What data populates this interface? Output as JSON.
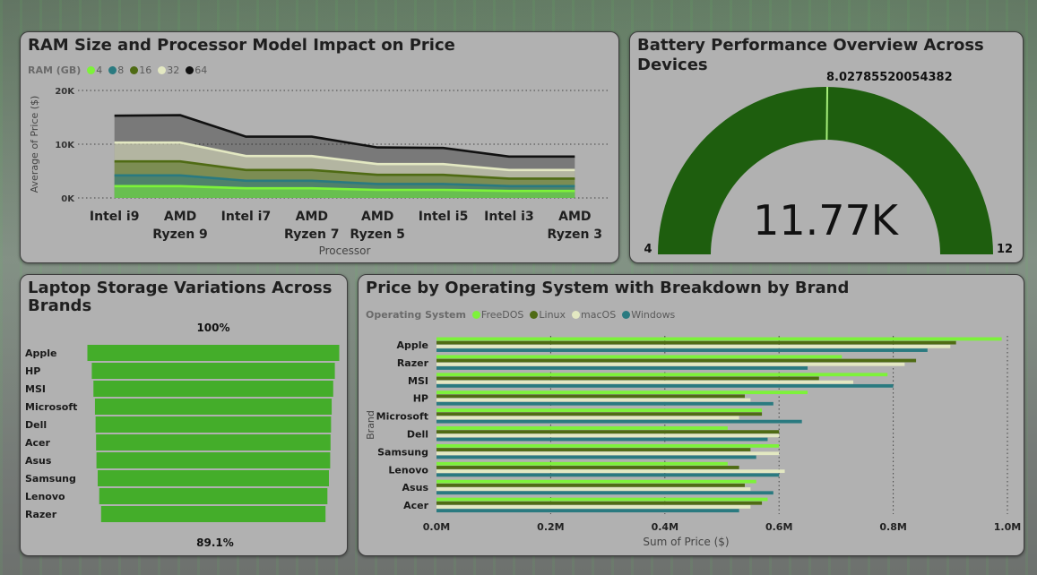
{
  "ram_chart": {
    "title": "RAM Size and Processor Model Impact on Price",
    "legend_title": "RAM (GB)",
    "chart_data": {
      "type": "area",
      "categories": [
        "Intel i9",
        "AMD Ryzen 9",
        "Intel i7",
        "AMD Ryzen 7",
        "AMD Ryzen 5",
        "Intel i5",
        "Intel i3",
        "AMD Ryzen 3"
      ],
      "category_lines": [
        [
          "Intel i9"
        ],
        [
          "AMD",
          "Ryzen 9"
        ],
        [
          "Intel i7"
        ],
        [
          "AMD",
          "Ryzen 7"
        ],
        [
          "AMD",
          "Ryzen 5"
        ],
        [
          "Intel i5"
        ],
        [
          "Intel i3"
        ],
        [
          "AMD",
          "Ryzen 3"
        ]
      ],
      "series": [
        {
          "name": "4",
          "color": "#7df23a",
          "values": [
            2200,
            2200,
            1800,
            1800,
            1500,
            1500,
            1300,
            1300
          ]
        },
        {
          "name": "8",
          "color": "#2a7a80",
          "values": [
            4200,
            4200,
            3200,
            3200,
            2600,
            2600,
            2200,
            2200
          ]
        },
        {
          "name": "16",
          "color": "#4f6b14",
          "values": [
            6800,
            6800,
            5200,
            5200,
            4300,
            4300,
            3600,
            3600
          ]
        },
        {
          "name": "32",
          "color": "#e3e8c2",
          "values": [
            10300,
            10300,
            7800,
            7800,
            6300,
            6300,
            5200,
            5200
          ]
        },
        {
          "name": "64",
          "color": "#111111",
          "values": [
            15300,
            15400,
            11400,
            11400,
            9400,
            9300,
            7700,
            7700
          ]
        }
      ],
      "yticks": [
        "0K",
        "10K",
        "20K"
      ],
      "ylim": [
        0,
        20000
      ],
      "xlabel": "Processor",
      "ylabel": "Average of Price ($)"
    }
  },
  "gauge": {
    "title": "Battery Performance Overview Across Devices",
    "value_label": "11.77K",
    "target_label": "8.02785520054382",
    "min_label": "4",
    "max_label": "12",
    "chart_data": {
      "type": "gauge",
      "min": 4,
      "max": 12,
      "target": 8.02785520054382,
      "value": 11770,
      "fill_color": "#1e5e0e",
      "target_color": "#a6ee7a"
    }
  },
  "storage": {
    "title_line1": "Laptop Storage Variations Across",
    "title_line2": "Brands",
    "top_label": "100%",
    "bottom_label": "89.1%",
    "chart_data": {
      "type": "funnel",
      "categories": [
        "Apple",
        "HP",
        "MSI",
        "Microsoft",
        "Dell",
        "Acer",
        "Asus",
        "Samsung",
        "Lenovo",
        "Razer"
      ],
      "values": [
        100,
        96.5,
        95.2,
        94.0,
        93.5,
        93.1,
        92.8,
        91.8,
        90.6,
        89.1
      ],
      "color": "#44ad2a"
    }
  },
  "os_chart": {
    "title": "Price by Operating System with Breakdown by Brand",
    "legend_title": "Operating System",
    "chart_data": {
      "type": "bar",
      "orientation": "horizontal",
      "categories": [
        "Apple",
        "Razer",
        "MSI",
        "HP",
        "Microsoft",
        "Dell",
        "Samsung",
        "Lenovo",
        "Asus",
        "Acer"
      ],
      "series": [
        {
          "name": "FreeDOS",
          "color": "#7df23a",
          "values": [
            0.99,
            0.71,
            0.79,
            0.65,
            0.57,
            0.51,
            0.6,
            0.51,
            0.56,
            0.58
          ]
        },
        {
          "name": "Linux",
          "color": "#4f6b14",
          "values": [
            0.91,
            0.84,
            0.67,
            0.54,
            0.57,
            0.6,
            0.55,
            0.53,
            0.54,
            0.57
          ]
        },
        {
          "name": "macOS",
          "color": "#e3e8c2",
          "values": [
            0.9,
            0.82,
            0.73,
            0.55,
            0.53,
            0.6,
            0.6,
            0.61,
            0.55,
            0.55
          ]
        },
        {
          "name": "Windows",
          "color": "#2a7a80",
          "values": [
            0.86,
            0.65,
            0.8,
            0.59,
            0.64,
            0.58,
            0.56,
            0.6,
            0.59,
            0.53
          ]
        }
      ],
      "xticks": [
        "0.0M",
        "0.2M",
        "0.4M",
        "0.6M",
        "0.8M",
        "1.0M"
      ],
      "xlim": [
        0,
        1.0
      ],
      "xlabel": "Sum of Price ($)",
      "ylabel": "Brand"
    }
  }
}
